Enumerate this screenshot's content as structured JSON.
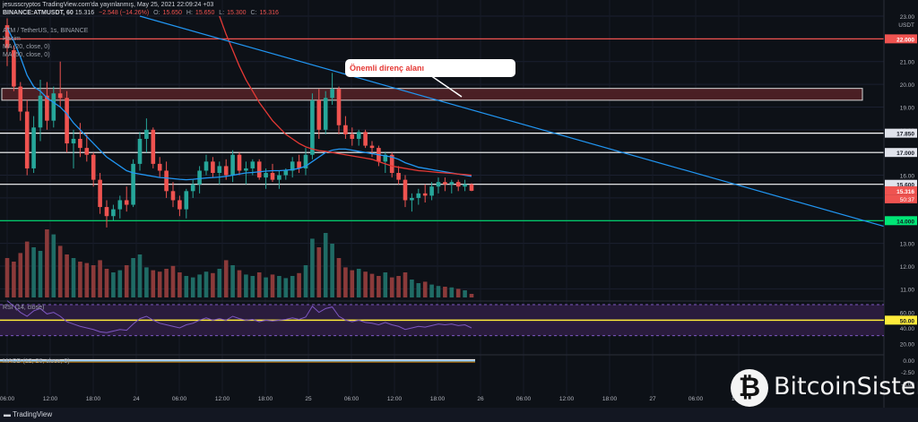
{
  "header": {
    "publisher_line": "jesusscryptos TradingView.com'da yayınlanmış, May 25, 2021 22:09:24 +03",
    "symbol_line": "BINANCE:ATMUSDT, 60",
    "last": "15.316",
    "change": "−2.548 (−14.26%)",
    "o_label": "O:",
    "o": "15.650",
    "h_label": "H:",
    "h": "15.650",
    "l_label": "L:",
    "l": "15.300",
    "c_label": "C:",
    "c": "15.316",
    "instrument": "ATM / TetherUS, 1s, BINANCE",
    "volume_label": "Hacim",
    "ma1": "MA (20, close, 0)",
    "ma2": "MA (50, close, 0)",
    "rsi_label": "RSI (14, close)",
    "macd_label": "MACD (12, 26, close, 9)"
  },
  "annotation": "Önemli direnç alanı",
  "footer": {
    "tradingview": "TradingView"
  },
  "watermark": {
    "icon": "₿",
    "text": "BitcoinSistemi"
  },
  "colors": {
    "background": "#0d1117",
    "up": "#26a69a",
    "down": "#ef5350",
    "ma20": "#2196f3",
    "ma50": "#e53935",
    "resistance_zone": "#4a1f24",
    "support": "#00e676",
    "rsi_mid": "#ffeb3b"
  },
  "chart_data": {
    "type": "candlestick",
    "title": "ATM / TetherUS, 1s, BINANCE",
    "currency": "USDT",
    "y_axis_ticks": [
      11.0,
      12.0,
      13.0,
      14.0,
      15.0,
      16.0,
      17.0,
      18.0,
      19.0,
      20.0,
      21.0,
      23.0
    ],
    "ylim": [
      10.7,
      23.0
    ],
    "x_tick_labels": [
      "06:00",
      "12:00",
      "18:00",
      "24",
      "06:00",
      "12:00",
      "18:00",
      "25",
      "06:00",
      "12:00",
      "18:00",
      "26",
      "06:00",
      "12:00",
      "18:00",
      "27",
      "06:00",
      "12:00"
    ],
    "price_labels": [
      {
        "value": 22.0,
        "text": "22.000",
        "style": "red"
      },
      {
        "value": 17.85,
        "text": "17.850",
        "style": "light"
      },
      {
        "value": 17.0,
        "text": "17.000",
        "style": "light"
      },
      {
        "value": 15.6,
        "text": "15.600",
        "style": "light"
      },
      {
        "value": 15.316,
        "text": "15.316",
        "style": "current"
      },
      {
        "value": 14.0,
        "text": "14.000",
        "style": "green"
      }
    ],
    "countdown": "50:37",
    "horizontal_lines": [
      {
        "value": 22.0,
        "color": "#ef5350"
      },
      {
        "value": 17.85,
        "color": "#ffffff"
      },
      {
        "value": 17.0,
        "color": "#ffffff"
      },
      {
        "value": 15.6,
        "color": "#ffffff"
      },
      {
        "value": 14.0,
        "color": "#00e676"
      }
    ],
    "resistance_zone": {
      "low": 19.3,
      "high": 19.82
    },
    "trendline": {
      "from": {
        "bar": 20,
        "price": 23.0
      },
      "to": {
        "bar": 134,
        "price": 13.6
      }
    },
    "candles": [
      [
        22.6,
        22.9,
        20.8,
        21.6
      ],
      [
        21.5,
        21.7,
        19.7,
        19.9
      ],
      [
        19.9,
        20.1,
        18.4,
        18.8
      ],
      [
        18.8,
        19.3,
        16.0,
        16.3
      ],
      [
        16.3,
        18.6,
        16.1,
        18.1
      ],
      [
        18.1,
        20.2,
        17.5,
        19.5
      ],
      [
        19.5,
        20.1,
        18.0,
        18.4
      ],
      [
        18.4,
        19.9,
        18.1,
        19.6
      ],
      [
        19.6,
        21.0,
        19.0,
        19.4
      ],
      [
        19.4,
        19.7,
        17.0,
        17.4
      ],
      [
        17.4,
        18.0,
        16.3,
        17.6
      ],
      [
        17.6,
        18.3,
        16.8,
        17.2
      ],
      [
        17.2,
        17.8,
        16.6,
        16.9
      ],
      [
        16.9,
        17.0,
        15.5,
        15.8
      ],
      [
        15.8,
        16.1,
        14.3,
        14.6
      ],
      [
        14.6,
        14.9,
        13.7,
        14.2
      ],
      [
        14.2,
        14.7,
        14.0,
        14.5
      ],
      [
        14.5,
        15.1,
        14.1,
        14.9
      ],
      [
        14.9,
        15.5,
        14.4,
        14.7
      ],
      [
        14.7,
        16.7,
        14.6,
        16.5
      ],
      [
        16.5,
        17.9,
        16.2,
        17.6
      ],
      [
        17.6,
        18.5,
        17.0,
        18.0
      ],
      [
        18.0,
        18.1,
        16.3,
        16.5
      ],
      [
        16.5,
        16.8,
        15.9,
        16.2
      ],
      [
        16.2,
        16.6,
        15.0,
        15.3
      ],
      [
        15.3,
        15.7,
        14.6,
        14.9
      ],
      [
        14.9,
        15.1,
        14.2,
        14.5
      ],
      [
        14.5,
        15.4,
        14.1,
        15.3
      ],
      [
        15.3,
        15.8,
        15.0,
        15.6
      ],
      [
        15.6,
        16.4,
        15.2,
        16.2
      ],
      [
        16.2,
        16.9,
        16.0,
        16.6
      ],
      [
        16.6,
        16.8,
        15.9,
        16.1
      ],
      [
        16.1,
        16.6,
        15.6,
        16.4
      ],
      [
        16.4,
        16.7,
        15.8,
        16.0
      ],
      [
        16.0,
        17.1,
        15.7,
        16.9
      ],
      [
        16.9,
        17.0,
        16.0,
        16.2
      ],
      [
        16.2,
        16.6,
        15.6,
        16.3
      ],
      [
        16.3,
        16.7,
        16.0,
        16.6
      ],
      [
        16.6,
        16.7,
        15.8,
        15.9
      ],
      [
        15.9,
        16.3,
        15.4,
        16.1
      ],
      [
        16.1,
        16.5,
        15.7,
        15.8
      ],
      [
        15.8,
        16.2,
        15.4,
        16.0
      ],
      [
        16.0,
        16.3,
        15.8,
        16.2
      ],
      [
        16.2,
        16.8,
        15.9,
        16.6
      ],
      [
        16.6,
        16.9,
        16.1,
        16.3
      ],
      [
        16.3,
        17.2,
        16.0,
        16.9
      ],
      [
        16.9,
        19.6,
        16.7,
        19.3
      ],
      [
        19.3,
        19.8,
        17.6,
        18.0
      ],
      [
        18.0,
        19.7,
        17.8,
        19.4
      ],
      [
        19.4,
        20.5,
        19.1,
        19.8
      ],
      [
        19.8,
        19.9,
        17.8,
        18.2
      ],
      [
        18.2,
        18.6,
        17.6,
        17.8
      ],
      [
        17.8,
        18.1,
        17.3,
        17.6
      ],
      [
        17.6,
        18.0,
        17.3,
        17.9
      ],
      [
        17.9,
        18.0,
        17.2,
        17.3
      ],
      [
        17.3,
        17.5,
        16.8,
        17.2
      ],
      [
        17.2,
        17.3,
        16.4,
        16.6
      ],
      [
        16.6,
        17.0,
        16.1,
        16.9
      ],
      [
        16.9,
        17.0,
        15.9,
        16.1
      ],
      [
        16.1,
        16.4,
        15.6,
        15.8
      ],
      [
        15.8,
        16.0,
        14.6,
        14.9
      ],
      [
        14.9,
        15.2,
        14.4,
        15.0
      ],
      [
        15.0,
        15.4,
        14.7,
        15.2
      ],
      [
        15.2,
        15.6,
        14.8,
        15.1
      ],
      [
        15.1,
        15.7,
        14.9,
        15.5
      ],
      [
        15.5,
        15.9,
        15.2,
        15.7
      ],
      [
        15.7,
        15.9,
        15.3,
        15.6
      ],
      [
        15.6,
        15.8,
        15.2,
        15.7
      ],
      [
        15.7,
        15.8,
        15.3,
        15.5
      ],
      [
        15.5,
        15.8,
        15.3,
        15.6
      ],
      [
        15.6,
        15.65,
        15.3,
        15.316
      ]
    ],
    "ma20": [
      22.5,
      21.9,
      21.2,
      20.4,
      19.9,
      19.7,
      19.4,
      19.2,
      19.0,
      18.7,
      18.3,
      18.0,
      17.7,
      17.4,
      17.1,
      16.8,
      16.6,
      16.4,
      16.2,
      16.1,
      16.05,
      16.0,
      15.95,
      15.9,
      15.88,
      15.85,
      15.82,
      15.8,
      15.82,
      15.85,
      15.88,
      15.9,
      15.92,
      15.95,
      16.0,
      16.05,
      16.1,
      16.12,
      16.15,
      16.18,
      16.2,
      16.2,
      16.22,
      16.25,
      16.3,
      16.4,
      16.6,
      16.8,
      17.0,
      17.1,
      17.15,
      17.15,
      17.1,
      17.05,
      17.0,
      16.95,
      16.9,
      16.85,
      16.8,
      16.7,
      16.55,
      16.45,
      16.35,
      16.3,
      16.25,
      16.2,
      16.15,
      16.1,
      16.05,
      16.0,
      15.95
    ],
    "ma50": [
      null,
      null,
      null,
      null,
      null,
      null,
      null,
      null,
      null,
      null,
      null,
      null,
      null,
      null,
      null,
      null,
      null,
      null,
      null,
      null,
      null,
      null,
      null,
      null,
      null,
      null,
      null,
      null,
      null,
      null,
      null,
      null,
      23.0,
      22.2,
      21.5,
      20.8,
      20.2,
      19.7,
      19.2,
      18.8,
      18.4,
      18.1,
      17.8,
      17.6,
      17.4,
      17.25,
      17.15,
      17.08,
      17.05,
      17.0,
      16.95,
      16.9,
      16.85,
      16.8,
      16.75,
      16.7,
      16.6,
      16.5,
      16.4,
      16.35,
      16.3,
      16.25,
      16.2,
      16.18,
      16.15,
      16.12,
      16.1,
      16.08,
      16.05,
      16.03,
      16.0
    ],
    "volume": [
      0.55,
      0.5,
      0.62,
      0.78,
      0.7,
      0.65,
      0.95,
      0.88,
      0.72,
      0.6,
      0.55,
      0.5,
      0.48,
      0.45,
      0.52,
      0.4,
      0.35,
      0.38,
      0.45,
      0.55,
      0.6,
      0.42,
      0.38,
      0.36,
      0.4,
      0.44,
      0.35,
      0.3,
      0.28,
      0.32,
      0.36,
      0.34,
      0.4,
      0.52,
      0.45,
      0.38,
      0.32,
      0.3,
      0.35,
      0.28,
      0.32,
      0.3,
      0.27,
      0.3,
      0.34,
      0.45,
      0.82,
      0.7,
      0.9,
      0.75,
      0.55,
      0.42,
      0.38,
      0.4,
      0.36,
      0.33,
      0.3,
      0.35,
      0.28,
      0.3,
      0.35,
      0.25,
      0.2,
      0.22,
      0.18,
      0.16,
      0.15,
      0.14,
      0.12,
      0.1,
      0.05
    ],
    "rsi": {
      "values": [
        75,
        68,
        60,
        55,
        62,
        65,
        58,
        60,
        55,
        48,
        45,
        42,
        40,
        38,
        35,
        34,
        36,
        38,
        37,
        45,
        52,
        55,
        50,
        46,
        44,
        42,
        40,
        44,
        46,
        50,
        53,
        50,
        52,
        50,
        55,
        52,
        50,
        51,
        48,
        50,
        49,
        50,
        51,
        53,
        51,
        54,
        68,
        60,
        65,
        67,
        55,
        50,
        48,
        50,
        47,
        46,
        44,
        47,
        44,
        42,
        38,
        40,
        42,
        41,
        43,
        45,
        44,
        45,
        43,
        44,
        40
      ],
      "levels": [
        30,
        50,
        70
      ],
      "ticks": [
        60.0,
        50.0,
        40.0,
        20.0
      ]
    },
    "macd": {
      "ticks": [
        0.0,
        -2.5,
        -5.0
      ],
      "note": "MACD near zero"
    }
  }
}
